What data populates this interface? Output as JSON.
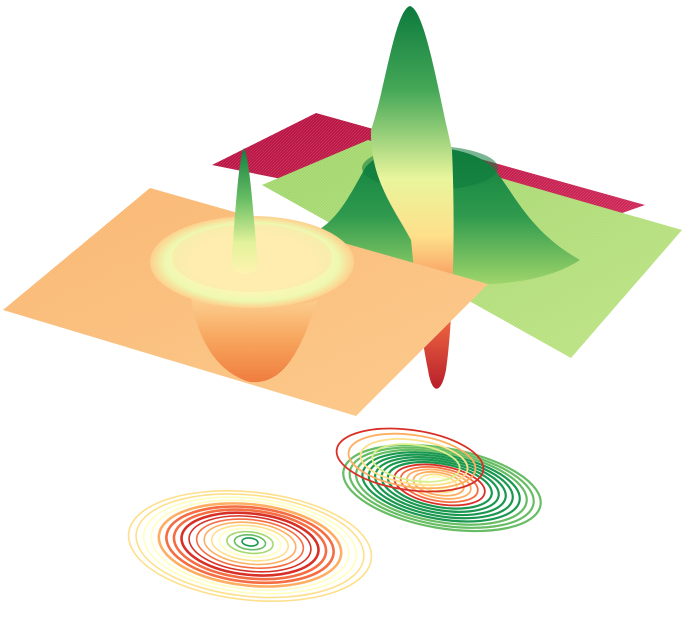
{
  "chart_data": {
    "type": "surface3d",
    "colormap": "RdYlGn",
    "colormap_stops": [
      "#a50026",
      "#d73027",
      "#f46d43",
      "#fdae61",
      "#fee08b",
      "#ffffbf",
      "#d9ef8b",
      "#a6d96a",
      "#66bd63",
      "#1a9850",
      "#006837"
    ],
    "grid": false,
    "axes_visible": false,
    "surfaces": [
      {
        "name": "",
        "shape": "flat sheet",
        "depth": 2,
        "base_level": 0.0,
        "color": "#c2184a"
      },
      {
        "name": "",
        "shape": "ring with central peak",
        "depth": 1,
        "base_level": 0.82,
        "rim_level": 0.9,
        "center_peak": 1.0,
        "center_trough": 0.0,
        "color": "#a6d96a"
      },
      {
        "name": "",
        "shape": "crater with central peak",
        "depth": 0,
        "base_level": 0.37,
        "rim_level": 0.65,
        "bowl_level": 0.25,
        "center_peak": 1.0,
        "color": "#fdbb72"
      }
    ],
    "contour_sets": [
      {
        "projection": "floor",
        "source_surface": 1,
        "ring_count": 14
      },
      {
        "projection": "floor",
        "source_surface": 2,
        "ring_count": 16
      }
    ]
  }
}
